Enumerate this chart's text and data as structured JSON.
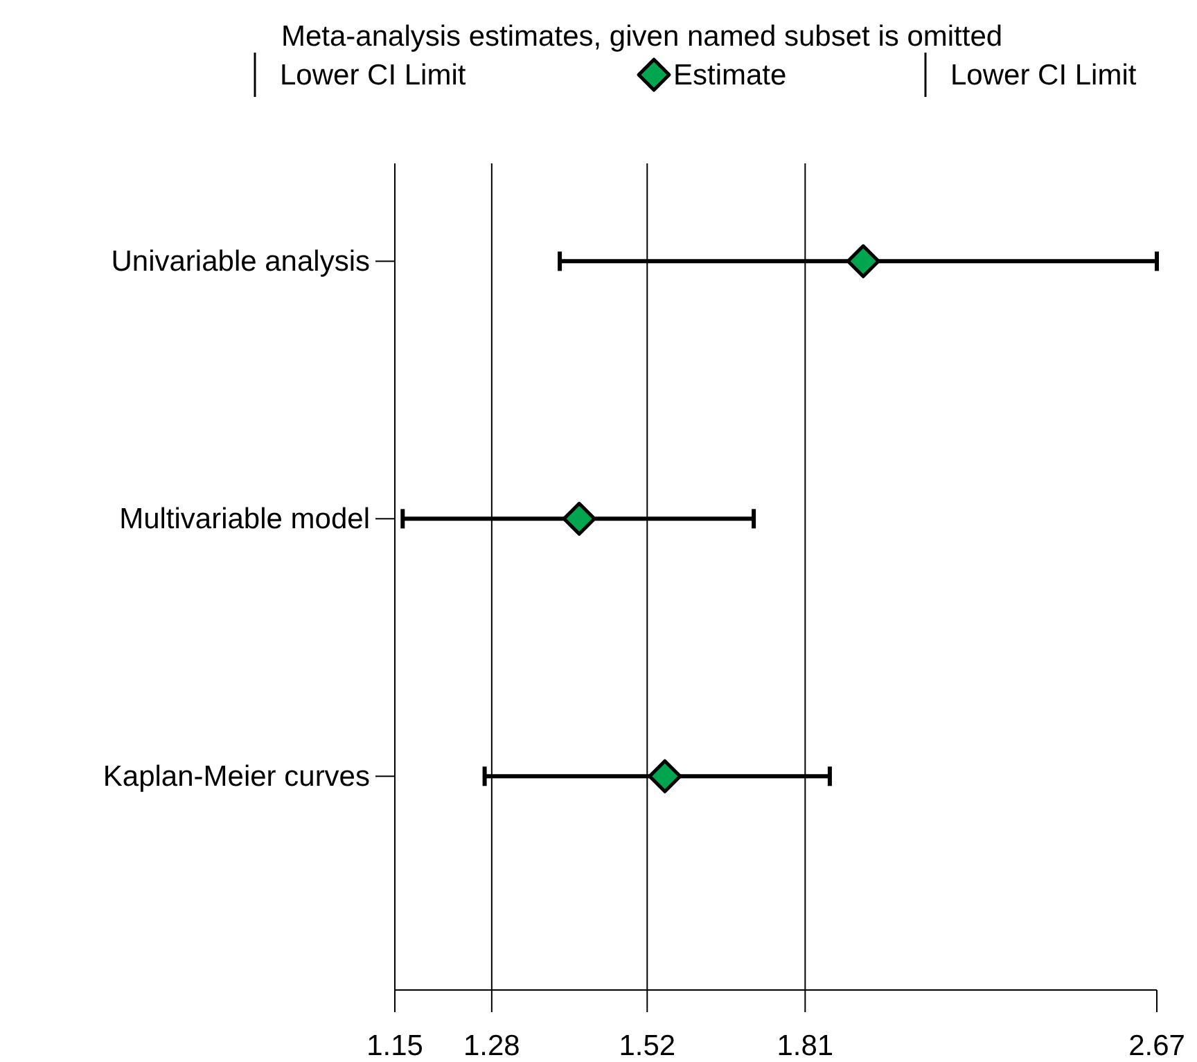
{
  "chart_data": {
    "type": "scatter",
    "orientation": "horizontal",
    "log": "x",
    "legend_title": "Meta-analysis estimates, given named subset is omitted",
    "legend": "top",
    "categories": [
      "Univariable analysis",
      "Multivariable model",
      "Kaplan-Meier curves"
    ],
    "series": [
      {
        "name": "Lower CI Limit",
        "color": "#000000",
        "marker": "none",
        "values": [
          null,
          null,
          null
        ]
      },
      {
        "name": "Estimate",
        "color": "#00a550",
        "marker": "diamond",
        "values": [
          1.93,
          1.41,
          1.55
        ],
        "errors": [
          [
            1.38,
            2.67
          ],
          [
            1.16,
            1.71
          ],
          [
            1.27,
            1.86
          ]
        ]
      },
      {
        "name": "Lower CI Limit",
        "color": "#000000",
        "marker": "none",
        "values": [
          null,
          null,
          null
        ]
      }
    ],
    "xlim": [
      1.15,
      2.67
    ],
    "xticks": [
      1.15,
      1.28,
      1.52,
      1.81,
      2.67
    ],
    "grid": "x"
  }
}
